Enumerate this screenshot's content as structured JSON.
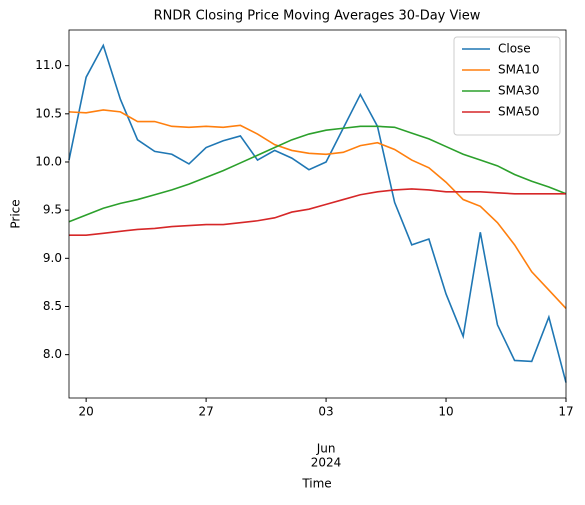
{
  "chart_data": {
    "type": "line",
    "title": "RNDR Closing Price Moving Averages 30-Day View",
    "xlabel": "Time",
    "ylabel": "Price",
    "x": [
      "2024-05-19",
      "2024-05-20",
      "2024-05-21",
      "2024-05-22",
      "2024-05-23",
      "2024-05-24",
      "2024-05-25",
      "2024-05-26",
      "2024-05-27",
      "2024-05-28",
      "2024-05-29",
      "2024-05-30",
      "2024-05-31",
      "2024-06-01",
      "2024-06-02",
      "2024-06-03",
      "2024-06-04",
      "2024-06-05",
      "2024-06-06",
      "2024-06-07",
      "2024-06-08",
      "2024-06-09",
      "2024-06-10",
      "2024-06-11",
      "2024-06-12",
      "2024-06-13",
      "2024-06-14",
      "2024-06-15",
      "2024-06-16",
      "2024-06-17"
    ],
    "series": [
      {
        "name": "Close",
        "color": "#1f77b4",
        "values": [
          10.02,
          10.88,
          11.21,
          10.65,
          10.23,
          10.11,
          10.08,
          9.98,
          10.15,
          10.22,
          10.27,
          10.02,
          10.12,
          10.04,
          9.92,
          10.0,
          10.35,
          10.7,
          10.37,
          9.58,
          9.14,
          9.2,
          8.63,
          8.19,
          9.27,
          8.31,
          7.94,
          7.93,
          8.39,
          7.71
        ]
      },
      {
        "name": "SMA10",
        "color": "#ff7f0e",
        "values": [
          10.52,
          10.51,
          10.54,
          10.52,
          10.42,
          10.42,
          10.37,
          10.36,
          10.37,
          10.36,
          10.38,
          10.29,
          10.18,
          10.12,
          10.09,
          10.08,
          10.1,
          10.17,
          10.2,
          10.13,
          10.02,
          9.94,
          9.79,
          9.61,
          9.54,
          9.37,
          9.14,
          8.86,
          8.67,
          8.48
        ]
      },
      {
        "name": "SMA30",
        "color": "#2ca02c",
        "values": [
          9.38,
          9.45,
          9.52,
          9.57,
          9.61,
          9.66,
          9.71,
          9.77,
          9.84,
          9.91,
          9.99,
          10.07,
          10.15,
          10.23,
          10.29,
          10.33,
          10.35,
          10.37,
          10.37,
          10.36,
          10.3,
          10.24,
          10.16,
          10.08,
          10.02,
          9.96,
          9.87,
          9.8,
          9.74,
          9.67
        ]
      },
      {
        "name": "SMA50",
        "color": "#d62728",
        "values": [
          9.24,
          9.24,
          9.26,
          9.28,
          9.3,
          9.31,
          9.33,
          9.34,
          9.35,
          9.35,
          9.37,
          9.39,
          9.42,
          9.48,
          9.51,
          9.56,
          9.61,
          9.66,
          9.69,
          9.71,
          9.72,
          9.71,
          9.69,
          9.69,
          9.69,
          9.68,
          9.67,
          9.67,
          9.67,
          9.67
        ]
      }
    ],
    "xlim": [
      "2024-05-19",
      "2024-06-17"
    ],
    "xticks": [
      {
        "value": "2024-05-20",
        "label": "20"
      },
      {
        "value": "2024-05-27",
        "label": "27"
      },
      {
        "value": "2024-06-03",
        "label": "03"
      },
      {
        "value": "2024-06-10",
        "label": "10"
      },
      {
        "value": "2024-06-17",
        "label": "17"
      }
    ],
    "x_sublabel": {
      "value": "2024-06-03",
      "label": [
        "Jun",
        "2024"
      ]
    },
    "ylim": [
      7.55,
      11.37
    ],
    "yticks": [
      {
        "value": 8,
        "label": "8.0"
      },
      8.5,
      {
        "value": 9,
        "label": "9.0"
      },
      9.5,
      {
        "value": 10,
        "label": "10.0"
      },
      10.5,
      {
        "value": 11,
        "label": "11.0"
      }
    ],
    "legend": "upper right"
  }
}
